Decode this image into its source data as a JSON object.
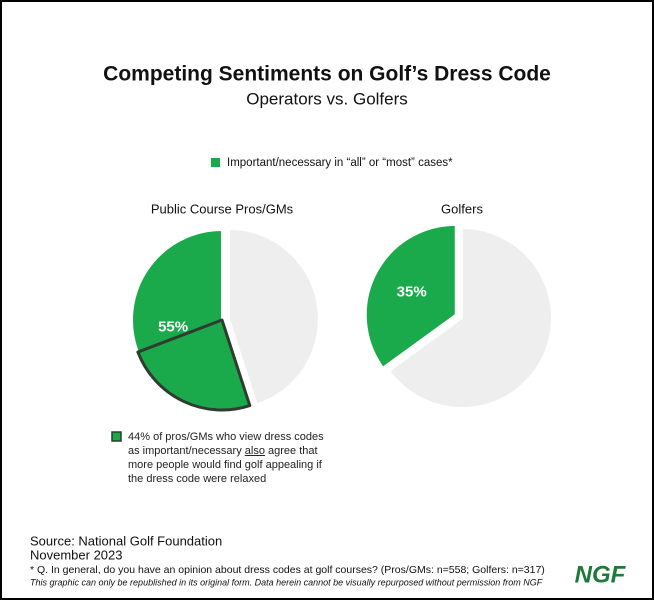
{
  "title": "Competing Sentiments on Golf’s Dress Code",
  "subtitle": "Operators vs. Golfers",
  "chart_data": [
    {
      "type": "pie",
      "title": "Public Course Pros/GMs",
      "categories": [
        "Important/necessary in “all” or “most” cases*",
        null
      ],
      "values": [
        55,
        45
      ],
      "value_labels": [
        "55%",
        null
      ],
      "colors": [
        "#1aaa4b",
        "#eeeeee"
      ],
      "highlight": {
        "value": 44,
        "color": "#2f3d30",
        "label": [
          "44% of pros/GMs who view dress codes as important/necessary ",
          "also",
          " agree that more people would find golf appealing if the dress code were relaxed"
        ]
      }
    },
    {
      "type": "pie",
      "title": "Golfers",
      "categories": [
        "Important/necessary in “all” or “most” cases*",
        null
      ],
      "values": [
        35,
        65
      ],
      "value_labels": [
        "35%",
        null
      ],
      "colors": [
        "#1aaa4b",
        "#eeeeee"
      ]
    }
  ],
  "source": "Source: National Golf Foundation",
  "date": "November 2023",
  "footnote": "* Q. In general, do you have an opinion about dress codes at golf courses? (Pros/GMs: n=558; Golfers: n=317)",
  "disclaimer": "This graphic can only be republished in its original form. Data herein cannot be visually repurposed without permission from NGF",
  "logo": "NGF"
}
